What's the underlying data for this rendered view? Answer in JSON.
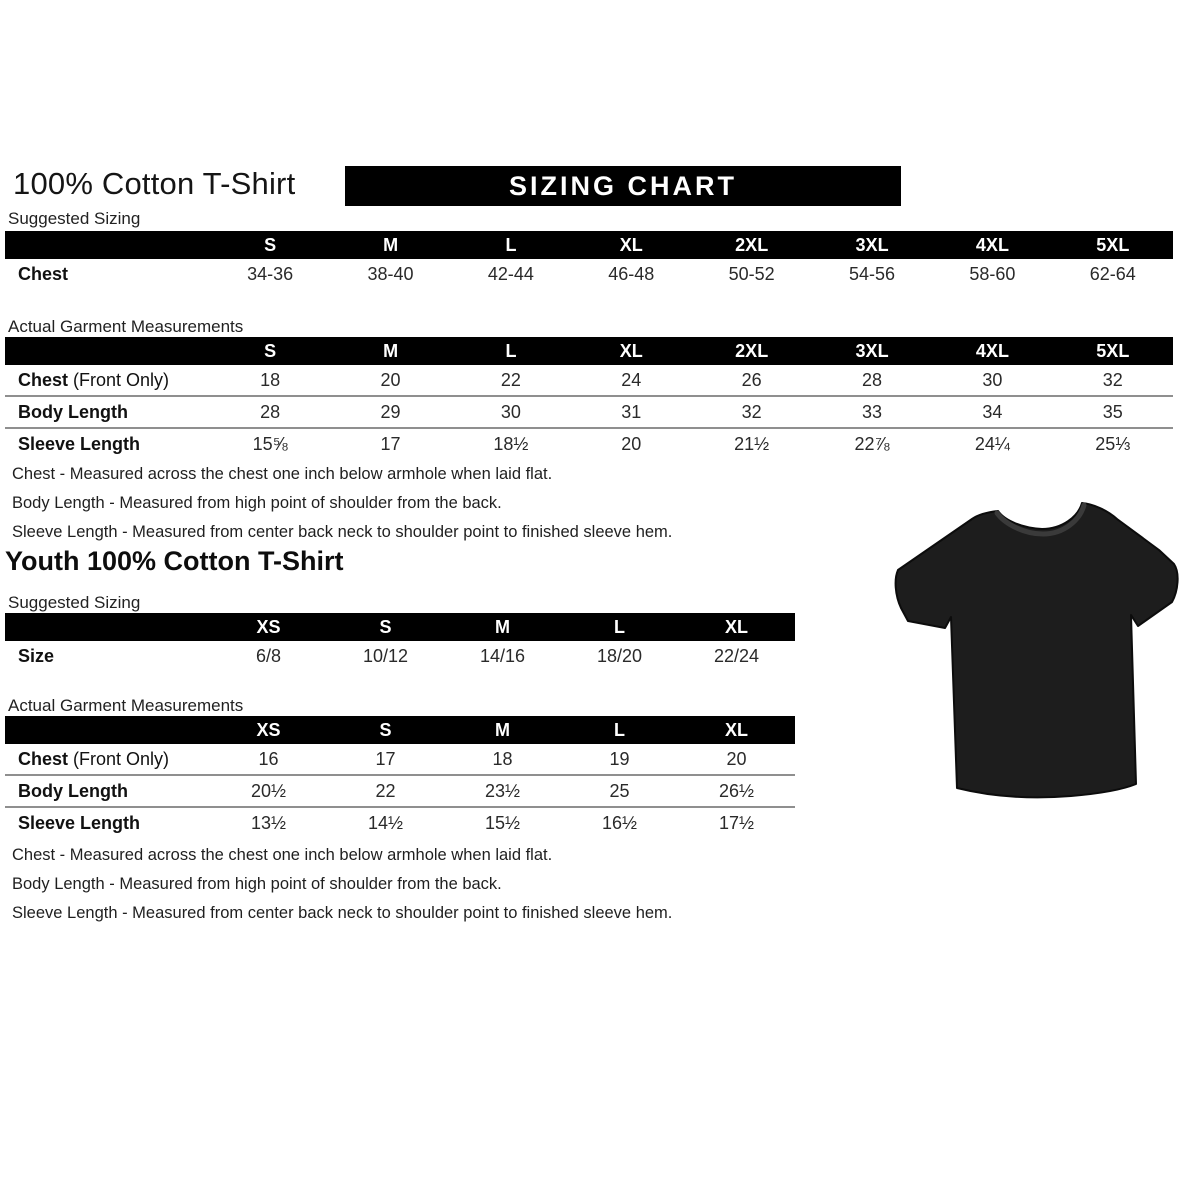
{
  "page": {
    "title": "100% Cotton T-Shirt",
    "banner": "SIZING CHART",
    "youth_title": "Youth 100% Cotton T-Shirt",
    "suggested_label": "Suggested Sizing",
    "actual_label": "Actual Garment Measurements"
  },
  "tables": {
    "adult_suggested": {
      "columns": [
        "S",
        "M",
        "L",
        "XL",
        "2XL",
        "3XL",
        "4XL",
        "5XL"
      ],
      "rows": [
        {
          "label": "Chest",
          "suffix": "",
          "values": [
            "34-36",
            "38-40",
            "42-44",
            "46-48",
            "50-52",
            "54-56",
            "58-60",
            "62-64"
          ]
        }
      ]
    },
    "adult_actual": {
      "columns": [
        "S",
        "M",
        "L",
        "XL",
        "2XL",
        "3XL",
        "4XL",
        "5XL"
      ],
      "rows": [
        {
          "label": "Chest",
          "suffix": "(Front Only)",
          "values": [
            "18",
            "20",
            "22",
            "24",
            "26",
            "28",
            "30",
            "32"
          ]
        },
        {
          "label": "Body Length",
          "suffix": "",
          "values": [
            "28",
            "29",
            "30",
            "31",
            "32",
            "33",
            "34",
            "35"
          ]
        },
        {
          "label": "Sleeve Length",
          "suffix": "",
          "values": [
            "15⅝",
            "17",
            "18½",
            "20",
            "21½",
            "22⅞",
            "24¼",
            "25⅓"
          ]
        }
      ]
    },
    "youth_suggested": {
      "columns": [
        "XS",
        "S",
        "M",
        "L",
        "XL"
      ],
      "rows": [
        {
          "label": "Size",
          "suffix": "",
          "values": [
            "6/8",
            "10/12",
            "14/16",
            "18/20",
            "22/24"
          ]
        }
      ]
    },
    "youth_actual": {
      "columns": [
        "XS",
        "S",
        "M",
        "L",
        "XL"
      ],
      "rows": [
        {
          "label": "Chest",
          "suffix": "(Front Only)",
          "values": [
            "16",
            "17",
            "18",
            "19",
            "20"
          ]
        },
        {
          "label": "Body Length",
          "suffix": "",
          "values": [
            "20½",
            "22",
            "23½",
            "25",
            "26½"
          ]
        },
        {
          "label": "Sleeve Length",
          "suffix": "",
          "values": [
            "13½",
            "14½",
            "15½",
            "16½",
            "17½"
          ]
        }
      ]
    }
  },
  "notes": {
    "adult": [
      "Chest - Measured across the chest one inch below armhole when laid flat.",
      "Body Length - Measured from high point of shoulder from the back.",
      "Sleeve Length - Measured from center back neck to shoulder point to finished sleeve hem."
    ],
    "youth": [
      "Chest - Measured across the chest one inch below armhole when laid flat.",
      "Body Length - Measured from high point of shoulder from the back.",
      "Sleeve Length - Measured from center back neck to shoulder point to finished sleeve hem."
    ]
  },
  "images": {
    "tshirt": "black-short-sleeve-tshirt",
    "tshirt_color": "#1d1d1d",
    "tshirt_collar_color": "#3a3a3a"
  }
}
